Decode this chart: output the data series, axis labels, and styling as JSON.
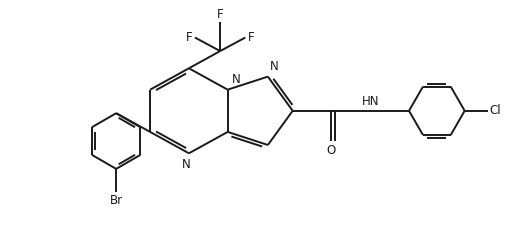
{
  "bg_color": "#ffffff",
  "line_color": "#1a1a1a",
  "line_width": 1.4,
  "font_size": 8.5,
  "figsize": [
    5.14,
    2.37
  ],
  "dpi": 100,
  "xlim": [
    0,
    10.28
  ],
  "ylim": [
    0,
    4.74
  ]
}
